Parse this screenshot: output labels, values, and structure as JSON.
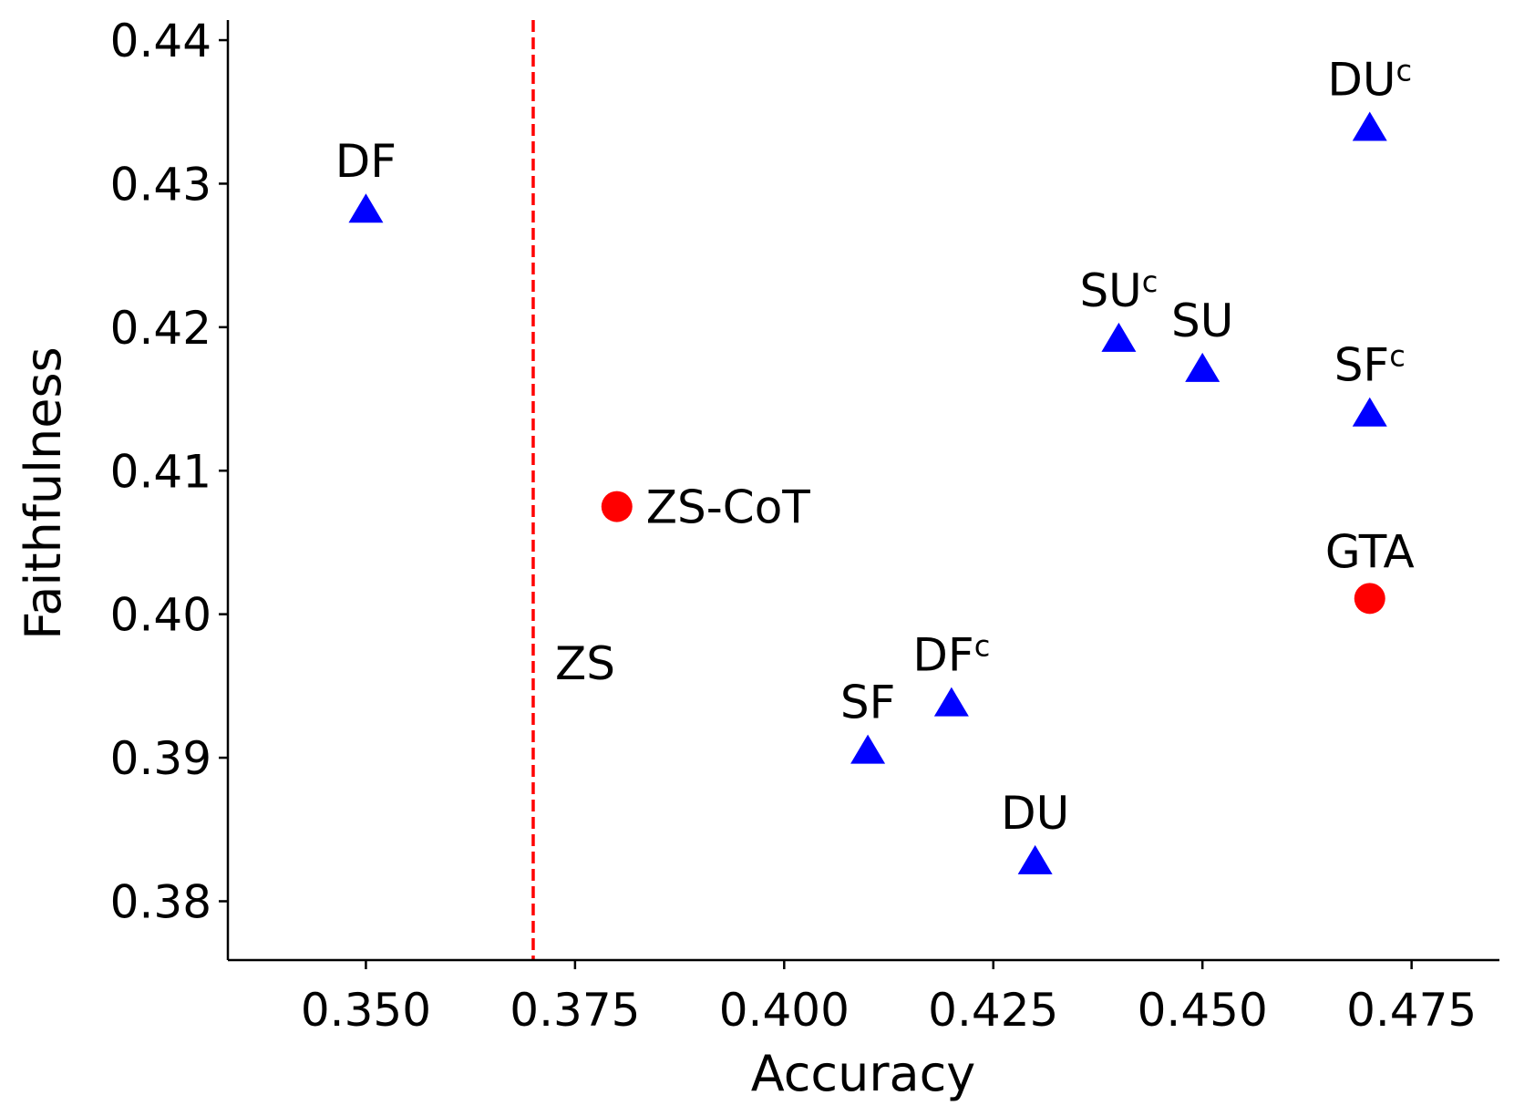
{
  "chart_data": {
    "type": "scatter",
    "title": "",
    "xlabel": "Accuracy",
    "ylabel": "Faithfulness",
    "xlim": [
      0.3335,
      0.4855
    ],
    "ylim": [
      0.3759,
      0.4414
    ],
    "x_ticks": [
      0.35,
      0.375,
      0.4,
      0.425,
      0.45,
      0.475
    ],
    "x_tick_labels": [
      "0.350",
      "0.375",
      "0.400",
      "0.425",
      "0.450",
      "0.475"
    ],
    "y_ticks": [
      0.38,
      0.39,
      0.4,
      0.41,
      0.42,
      0.43,
      0.44
    ],
    "y_tick_labels": [
      "0.38",
      "0.39",
      "0.40",
      "0.41",
      "0.42",
      "0.43",
      "0.44"
    ],
    "grid": false,
    "reference_line": {
      "orientation": "vertical",
      "x": 0.37,
      "style": "dashed",
      "color": "#ff0000",
      "label": "ZS"
    },
    "series": [
      {
        "name": "baselines",
        "marker": "circle",
        "color": "#ff0000",
        "points": [
          {
            "label": "ZS-CoT",
            "x": 0.38,
            "y": 0.4075,
            "label_pos": "right"
          },
          {
            "label": "GTA",
            "x": 0.47,
            "y": 0.4011,
            "label_pos": "above"
          }
        ]
      },
      {
        "name": "variants",
        "marker": "triangle",
        "color": "#0000ff",
        "points": [
          {
            "label": "DF",
            "sup": "",
            "x": 0.35,
            "y": 0.4283,
            "label_pos": "above"
          },
          {
            "label": "DU",
            "sup": "c",
            "x": 0.47,
            "y": 0.434,
            "label_pos": "above"
          },
          {
            "label": "SU",
            "sup": "c",
            "x": 0.44,
            "y": 0.4193,
            "label_pos": "above"
          },
          {
            "label": "SU",
            "sup": "",
            "x": 0.45,
            "y": 0.4172,
            "label_pos": "above"
          },
          {
            "label": "SF",
            "sup": "c",
            "x": 0.47,
            "y": 0.4141,
            "label_pos": "above"
          },
          {
            "label": "DF",
            "sup": "c",
            "x": 0.42,
            "y": 0.3939,
            "label_pos": "above"
          },
          {
            "label": "SF",
            "sup": "",
            "x": 0.41,
            "y": 0.3906,
            "label_pos": "above"
          },
          {
            "label": "DU",
            "sup": "",
            "x": 0.43,
            "y": 0.3829,
            "label_pos": "above"
          }
        ]
      }
    ]
  }
}
